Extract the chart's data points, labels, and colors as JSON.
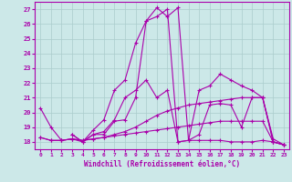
{
  "xlabel": "Windchill (Refroidissement éolien,°C)",
  "bg_color": "#cce8e8",
  "grid_color": "#aacccc",
  "line_color": "#aa00aa",
  "xlim": [
    -0.5,
    23.5
  ],
  "ylim": [
    17.5,
    27.5
  ],
  "yticks": [
    18,
    19,
    20,
    21,
    22,
    23,
    24,
    25,
    26,
    27
  ],
  "xticks": [
    0,
    1,
    2,
    3,
    4,
    5,
    6,
    7,
    8,
    9,
    10,
    11,
    12,
    13,
    14,
    15,
    16,
    17,
    18,
    19,
    20,
    21,
    22,
    23
  ],
  "series": [
    {
      "x": [
        0,
        1,
        2,
        3,
        4,
        5,
        6,
        7,
        8,
        9,
        10,
        11,
        12,
        13,
        14,
        15,
        16,
        17,
        18,
        19,
        20,
        21,
        22,
        23
      ],
      "y": [
        20.3,
        19.0,
        18.1,
        18.2,
        18.0,
        18.5,
        18.5,
        19.4,
        19.5,
        21.0,
        26.2,
        27.1,
        26.5,
        27.1,
        18.1,
        18.1,
        18.1,
        18.1,
        18.0,
        18.0,
        18.0,
        18.1,
        18.0,
        17.8
      ]
    },
    {
      "x": [
        0,
        1,
        2,
        3,
        4,
        5,
        6,
        7,
        8,
        9,
        10,
        11,
        12,
        13,
        14,
        15,
        16,
        17,
        18,
        19,
        20,
        21,
        22,
        23
      ],
      "y": [
        18.3,
        18.1,
        18.1,
        18.2,
        18.1,
        18.2,
        18.3,
        18.4,
        18.5,
        18.6,
        18.7,
        18.8,
        18.9,
        19.0,
        19.1,
        19.2,
        19.3,
        19.4,
        19.4,
        19.4,
        19.4,
        19.4,
        18.0,
        17.8
      ]
    },
    {
      "x": [
        0,
        1,
        2,
        3,
        4,
        5,
        6,
        7,
        8,
        9,
        10,
        11,
        12,
        13,
        14,
        15,
        16,
        17,
        18,
        19,
        20,
        21,
        22,
        23
      ],
      "y": [
        18.3,
        18.1,
        18.1,
        18.2,
        18.1,
        18.2,
        18.3,
        18.5,
        18.7,
        19.0,
        19.4,
        19.8,
        20.1,
        20.3,
        20.5,
        20.6,
        20.7,
        20.8,
        20.9,
        21.0,
        21.0,
        21.0,
        18.0,
        17.8
      ]
    },
    {
      "x": [
        3,
        4,
        5,
        6,
        7,
        8,
        9,
        10,
        11,
        12,
        13,
        14,
        15,
        16,
        17,
        18,
        19,
        20,
        21,
        22,
        23
      ],
      "y": [
        18.5,
        18.0,
        18.5,
        18.7,
        19.5,
        21.0,
        21.5,
        22.2,
        21.0,
        21.5,
        18.0,
        18.1,
        21.5,
        21.8,
        22.6,
        22.2,
        21.8,
        21.5,
        21.0,
        18.2,
        17.8
      ]
    },
    {
      "x": [
        3,
        4,
        5,
        6,
        7,
        8,
        9,
        10,
        11,
        12,
        13,
        14,
        15,
        16,
        17,
        18,
        19,
        20,
        21,
        22,
        23
      ],
      "y": [
        18.5,
        18.0,
        18.8,
        19.5,
        21.5,
        22.2,
        24.7,
        26.2,
        26.5,
        27.0,
        18.0,
        18.1,
        18.5,
        20.5,
        20.6,
        20.5,
        19.0,
        21.0,
        21.0,
        18.0,
        17.8
      ]
    }
  ]
}
